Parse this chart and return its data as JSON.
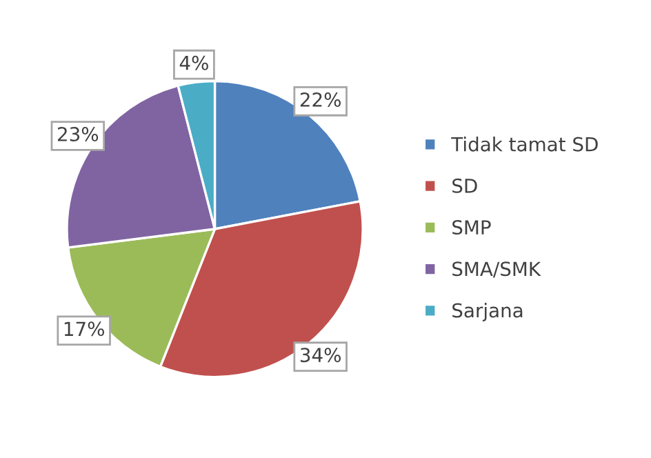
{
  "chart_data": {
    "type": "pie",
    "categories": [
      "Tidak tamat SD",
      "SD",
      "SMP",
      "SMA/SMK",
      "Sarjana"
    ],
    "values": [
      22,
      34,
      17,
      23,
      4
    ],
    "colors": [
      "#4f81bd",
      "#c0504d",
      "#9bbb59",
      "#8064a2",
      "#4bacc6"
    ],
    "value_labels": [
      "22%",
      "34%",
      "17%",
      "23%",
      "4%"
    ],
    "legend": "right"
  }
}
